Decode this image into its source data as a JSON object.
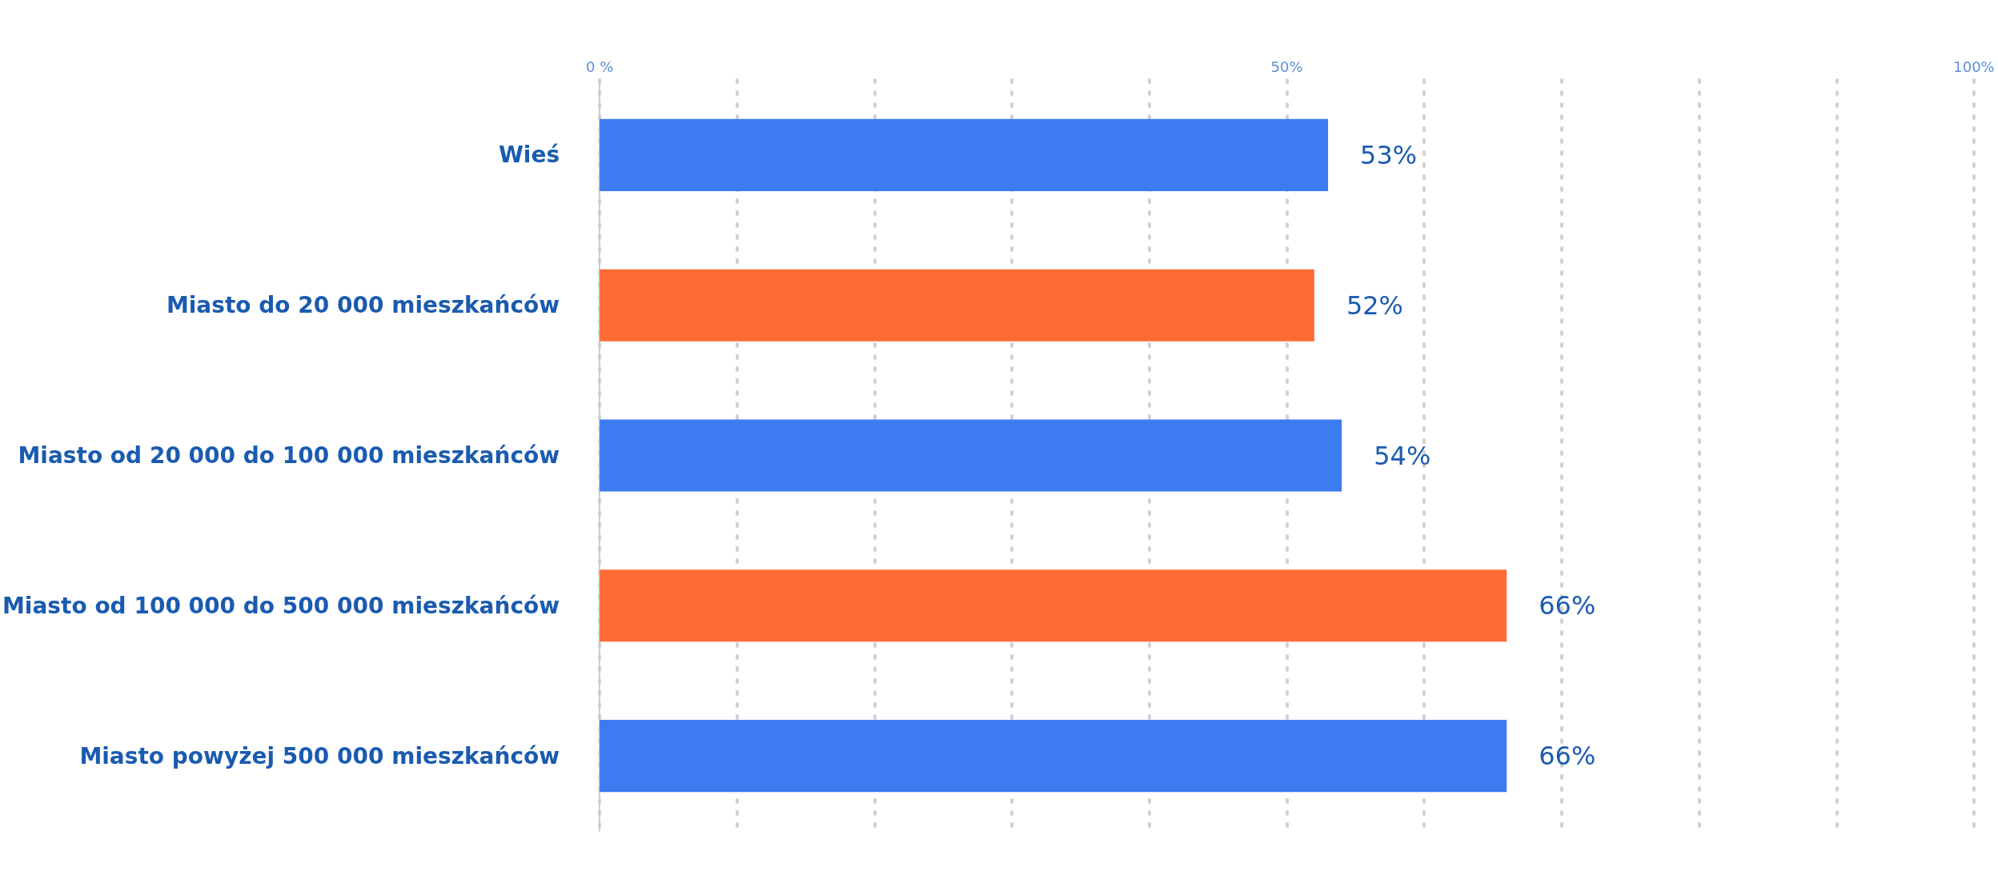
{
  "chart_data": {
    "type": "bar",
    "orientation": "horizontal",
    "categories": [
      "Wieś",
      "Miasto do 20 000 mieszkańców",
      "Miasto od 20 000 do 100 000 mieszkańców",
      "Miasto od 100 000 do 500 000 mieszkańców",
      "Miasto powyżej 500 000 mieszkańców"
    ],
    "values": [
      53,
      52,
      54,
      66,
      66
    ],
    "colors": [
      "#3d7bf0",
      "#ff6b35",
      "#3d7bf0",
      "#ff6b35",
      "#3d7bf0"
    ],
    "value_labels": [
      "53%",
      "52%",
      "54%",
      "66%",
      "66%"
    ],
    "xlim": [
      0,
      100
    ],
    "xticks": [
      {
        "value": 0,
        "label": "0 %"
      },
      {
        "value": 10,
        "label": null
      },
      {
        "value": 20,
        "label": null
      },
      {
        "value": 30,
        "label": null
      },
      {
        "value": 40,
        "label": null
      },
      {
        "value": 50,
        "label": "50%"
      },
      {
        "value": 60,
        "label": null
      },
      {
        "value": 70,
        "label": null
      },
      {
        "value": 80,
        "label": null
      },
      {
        "value": 90,
        "label": null
      },
      {
        "value": 100,
        "label": "100%"
      }
    ],
    "grid": "x"
  }
}
